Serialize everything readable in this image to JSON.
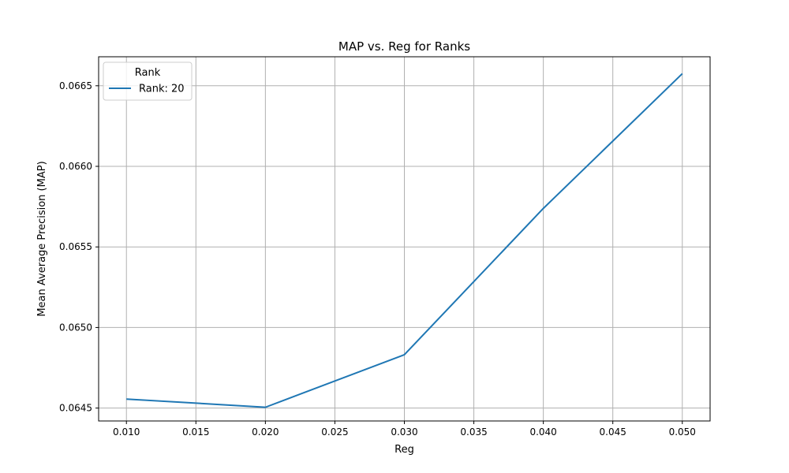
{
  "chart_data": {
    "type": "line",
    "title": "MAP vs. Reg for Ranks",
    "xlabel": "Reg",
    "ylabel": "Mean Average Precision (MAP)",
    "xlim": [
      0.008,
      0.052
    ],
    "ylim": [
      0.06442,
      0.06668
    ],
    "xticks": [
      0.01,
      0.015,
      0.02,
      0.025,
      0.03,
      0.035,
      0.04,
      0.045,
      0.05
    ],
    "xtick_labels": [
      "0.010",
      "0.015",
      "0.020",
      "0.025",
      "0.030",
      "0.035",
      "0.040",
      "0.045",
      "0.050"
    ],
    "yticks": [
      0.0645,
      0.065,
      0.0655,
      0.066,
      0.0665
    ],
    "ytick_labels": [
      "0.0645",
      "0.0650",
      "0.0655",
      "0.0660",
      "0.0665"
    ],
    "grid": true,
    "legend": {
      "title": "Rank",
      "placement": "upper-left"
    },
    "series": [
      {
        "name": "Rank: 20",
        "color": "#1f77b4",
        "x": [
          0.01,
          0.02,
          0.03,
          0.04,
          0.05
        ],
        "y": [
          0.064556,
          0.064505,
          0.064831,
          0.065739,
          0.066575
        ]
      }
    ]
  }
}
